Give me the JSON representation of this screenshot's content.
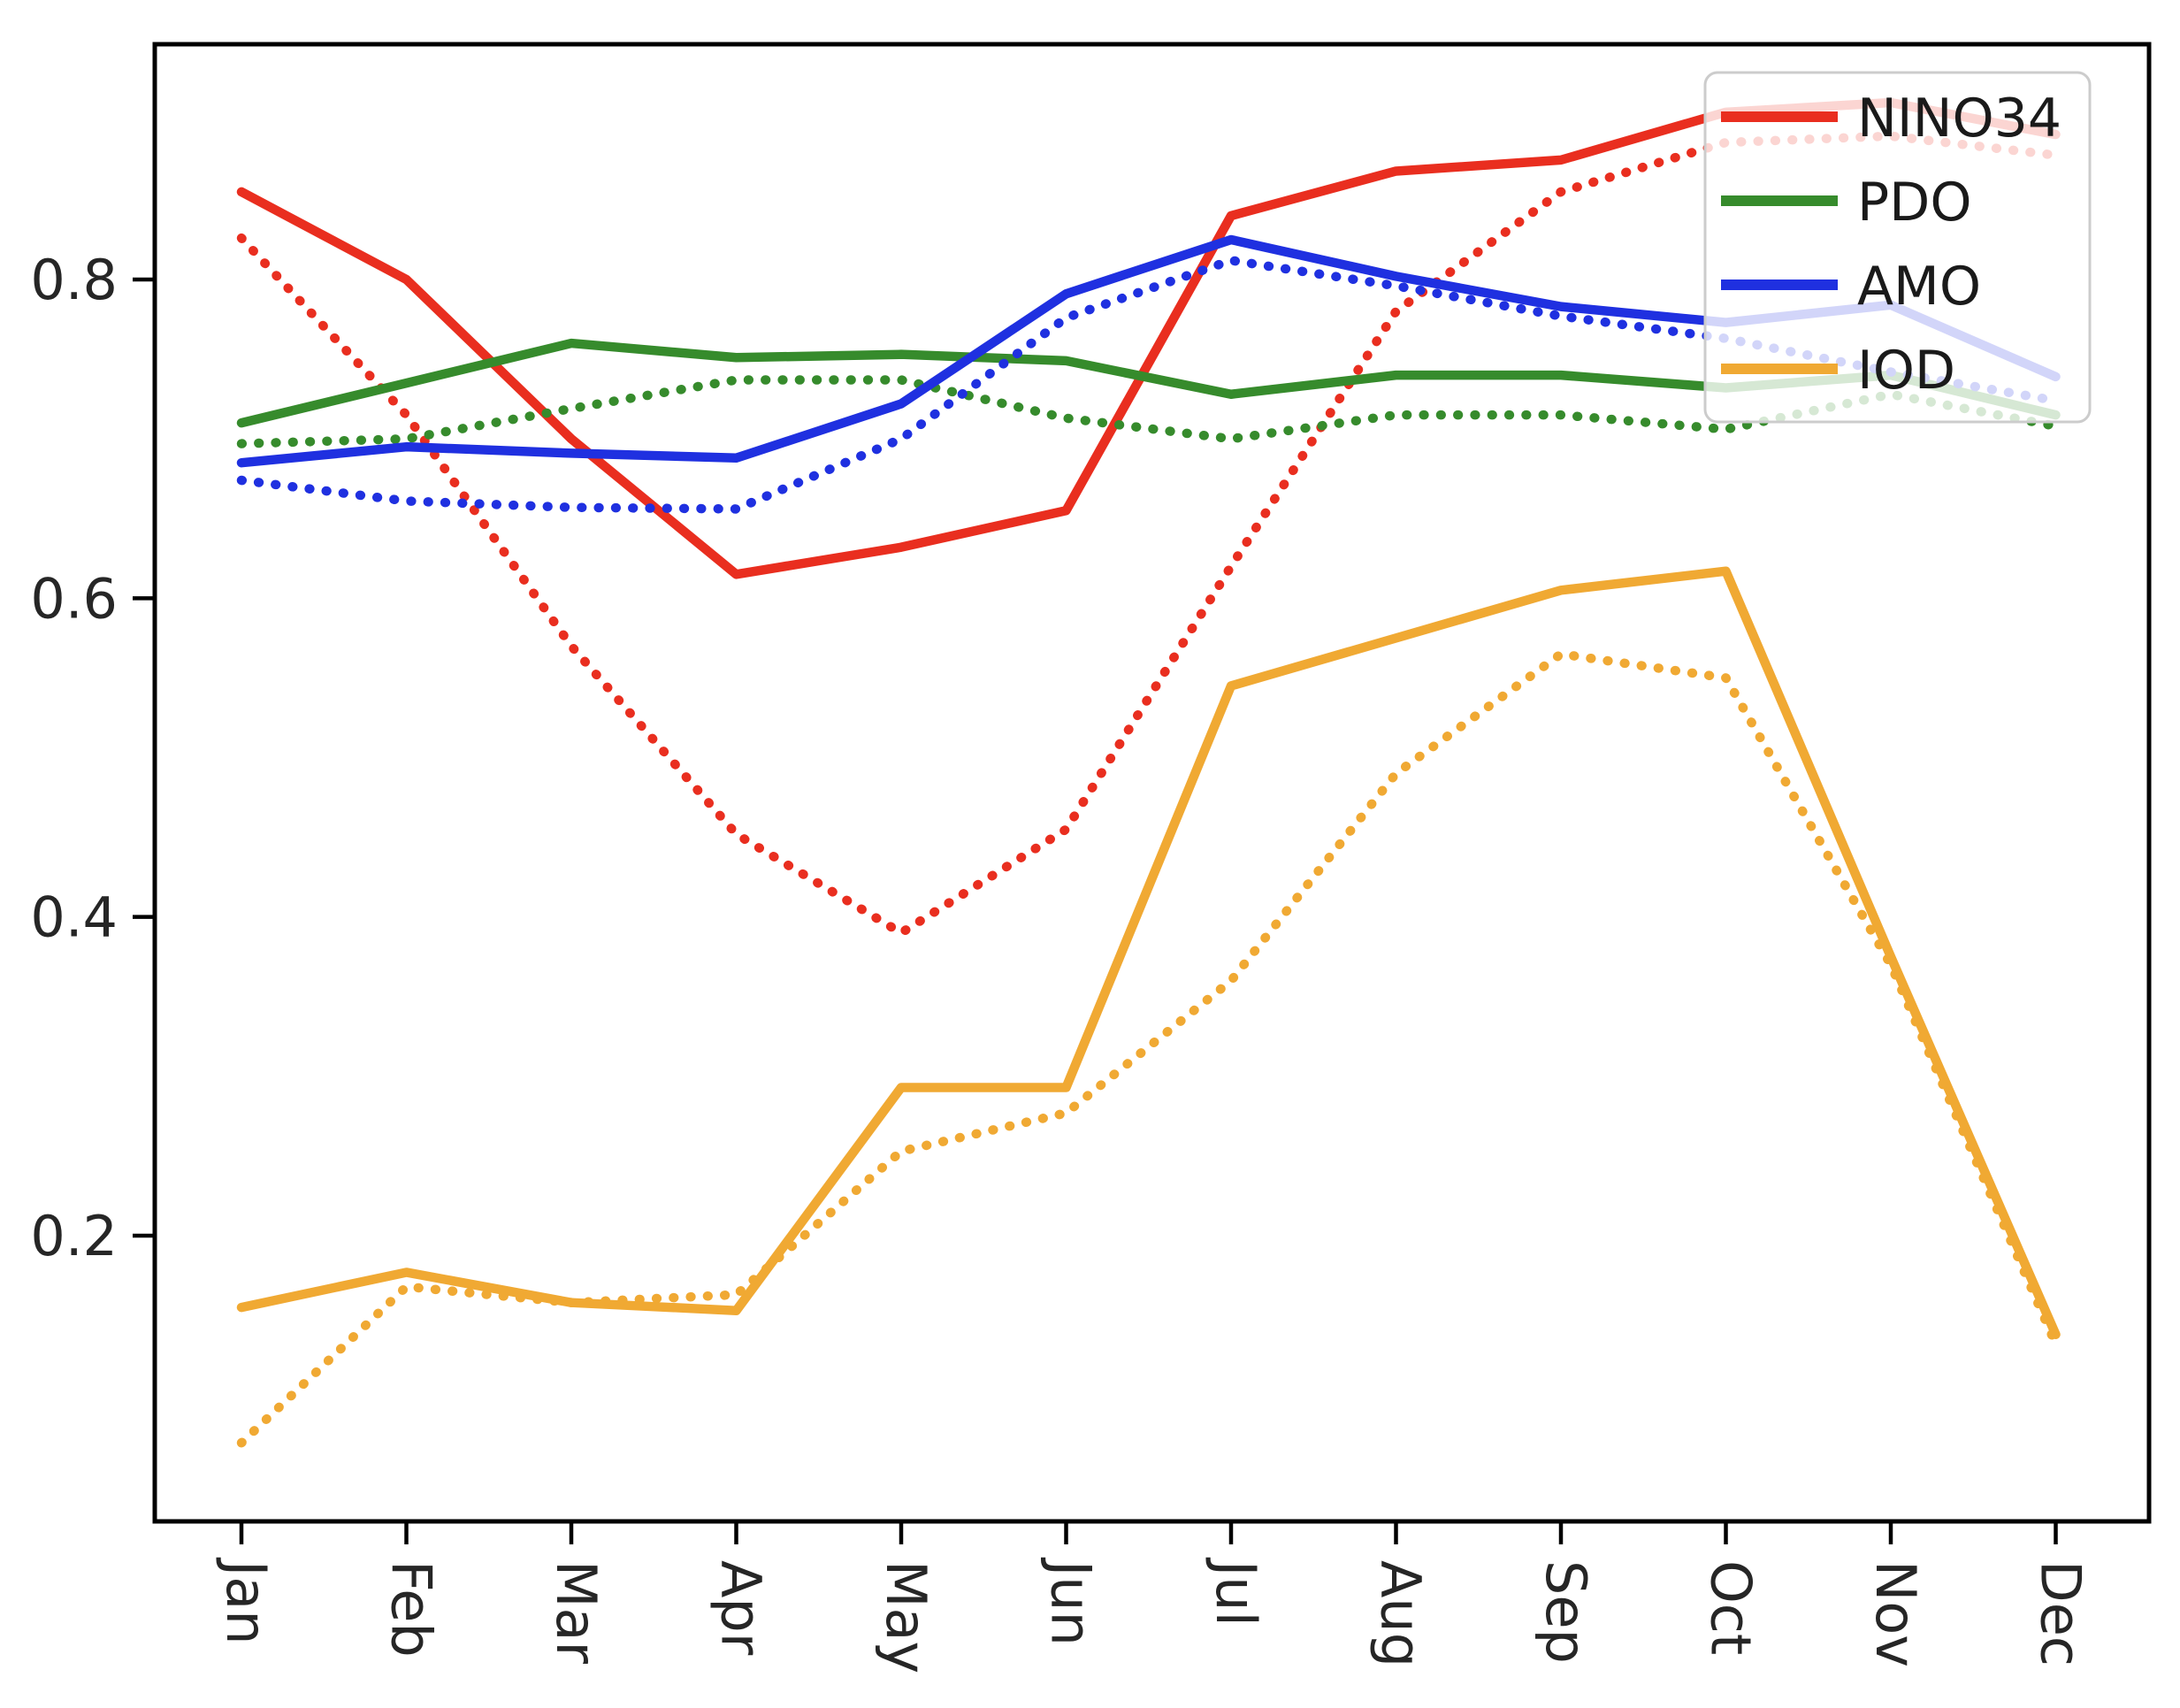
{
  "figure": {
    "background": "#ffffff",
    "axis_color": "#000000",
    "tick_label_color": "#262626"
  },
  "chart_data": {
    "type": "line",
    "title": "",
    "xlabel": "",
    "ylabel": "",
    "grid": false,
    "legend_position": "upper right",
    "categories": [
      "Jan",
      "Feb",
      "Mar",
      "Apr",
      "May",
      "Jun",
      "Jul",
      "Aug",
      "Sep",
      "Oct",
      "Nov",
      "Dec"
    ],
    "yticks": [
      0.2,
      0.4,
      0.6,
      0.8
    ],
    "ylim": [
      0.02,
      0.95
    ],
    "series": [
      {
        "name": "NINO34",
        "color": "#e92e1f",
        "solid": [
          0.855,
          0.8,
          0.7,
          0.615,
          0.632,
          0.655,
          0.84,
          0.868,
          0.875,
          0.905,
          0.911,
          0.891
        ],
        "dotted": [
          0.826,
          0.715,
          0.57,
          0.452,
          0.39,
          0.455,
          0.62,
          0.78,
          0.855,
          0.886,
          0.89,
          0.878
        ]
      },
      {
        "name": "PDO",
        "color": "#368b2c",
        "solid": [
          0.71,
          0.735,
          0.76,
          0.751,
          0.753,
          0.749,
          0.728,
          0.74,
          0.74,
          0.732,
          0.74,
          0.715
        ],
        "dotted": [
          0.697,
          0.7,
          0.719,
          0.737,
          0.737,
          0.713,
          0.7,
          0.715,
          0.715,
          0.706,
          0.728,
          0.708
        ]
      },
      {
        "name": "AMO",
        "color": "#1f30e0",
        "solid": [
          0.685,
          0.695,
          0.691,
          0.688,
          0.722,
          0.791,
          0.825,
          0.802,
          0.783,
          0.773,
          0.784,
          0.739
        ],
        "dotted": [
          0.674,
          0.661,
          0.657,
          0.656,
          0.7,
          0.776,
          0.812,
          0.796,
          0.777,
          0.763,
          0.742,
          0.724
        ]
      },
      {
        "name": "IOD",
        "color": "#f0a933",
        "solid": [
          0.155,
          0.177,
          0.158,
          0.153,
          0.293,
          0.293,
          0.545,
          0.575,
          0.605,
          0.617,
          0.375,
          0.138
        ],
        "dotted": [
          0.07,
          0.168,
          0.158,
          0.163,
          0.253,
          0.277,
          0.36,
          0.49,
          0.565,
          0.55,
          0.37,
          0.132
        ]
      }
    ],
    "legend": {
      "labels": [
        "NINO34",
        "PDO",
        "AMO",
        "IOD"
      ],
      "background": "rgba(255,255,255,0.8)",
      "border_color": "#cccccc",
      "text_color": "#1a1a1a"
    }
  }
}
